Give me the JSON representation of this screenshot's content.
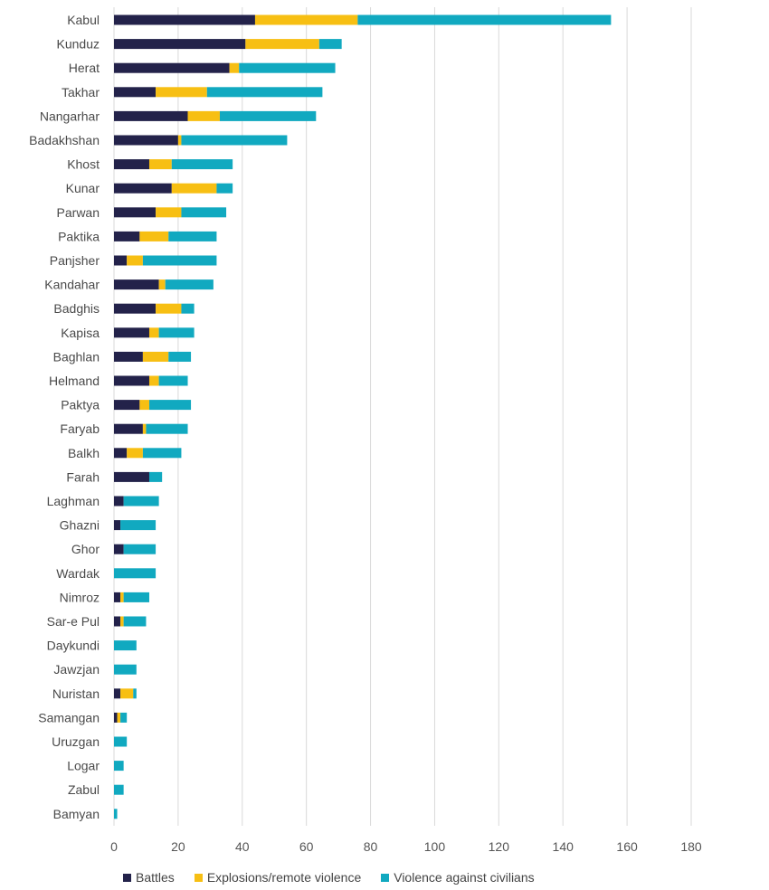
{
  "chart_data": {
    "type": "bar",
    "orientation": "horizontal",
    "stacked": true,
    "categories": [
      "Kabul",
      "Kunduz",
      "Herat",
      "Takhar",
      "Nangarhar",
      "Badakhshan",
      "Khost",
      "Kunar",
      "Parwan",
      "Paktika",
      "Panjsher",
      "Kandahar",
      "Badghis",
      "Kapisa",
      "Baghlan",
      "Helmand",
      "Paktya",
      "Faryab",
      "Balkh",
      "Farah",
      "Laghman",
      "Ghazni",
      "Ghor",
      "Wardak",
      "Nimroz",
      "Sar-e Pul",
      "Daykundi",
      "Jawzjan",
      "Nuristan",
      "Samangan",
      "Uruzgan",
      "Logar",
      "Zabul",
      "Bamyan"
    ],
    "series": [
      {
        "name": "Battles",
        "color": "#23224a",
        "values": [
          44,
          41,
          36,
          13,
          23,
          20,
          11,
          18,
          13,
          8,
          4,
          14,
          13,
          11,
          9,
          11,
          8,
          9,
          4,
          11,
          3,
          2,
          3,
          0,
          2,
          2,
          0,
          0,
          2,
          1,
          0,
          0,
          0,
          0
        ]
      },
      {
        "name": "Explosions/remote violence",
        "color": "#f7bf13",
        "values": [
          32,
          23,
          3,
          16,
          10,
          1,
          7,
          14,
          8,
          9,
          5,
          2,
          8,
          3,
          8,
          3,
          3,
          1,
          5,
          0,
          0,
          0,
          0,
          0,
          1,
          1,
          0,
          0,
          4,
          1,
          0,
          0,
          0,
          0
        ]
      },
      {
        "name": "Violence against civilians",
        "color": "#11a9c0",
        "values": [
          79,
          7,
          30,
          36,
          30,
          33,
          19,
          5,
          14,
          15,
          23,
          15,
          4,
          11,
          7,
          9,
          13,
          13,
          12,
          4,
          11,
          11,
          10,
          13,
          8,
          7,
          7,
          7,
          1,
          2,
          4,
          3,
          3,
          1
        ]
      }
    ],
    "xlim": [
      0,
      180
    ],
    "xticks": [
      0,
      20,
      40,
      60,
      80,
      100,
      120,
      140,
      160,
      180
    ],
    "grid": "vertical",
    "legend_position": "bottom-left",
    "title": "",
    "xlabel": "",
    "ylabel": ""
  }
}
